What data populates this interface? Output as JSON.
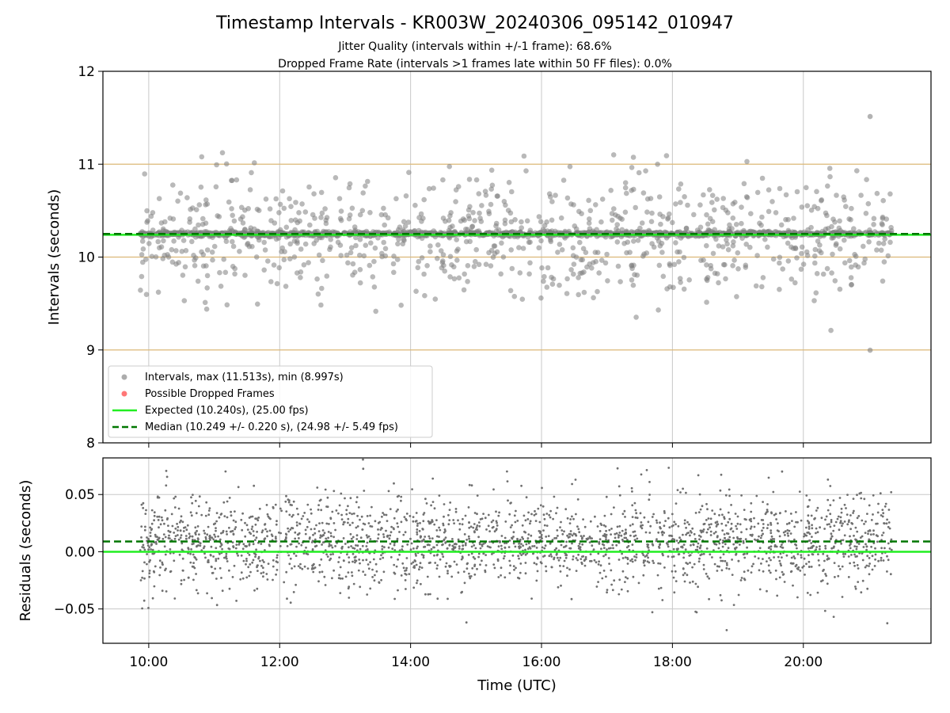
{
  "chart_data": {
    "type": "scatter",
    "title": "Timestamp Intervals - KR003W_20240306_095142_010947",
    "subtitle_lines": [
      "Jitter Quality (intervals within +/-1 frame): 68.6%",
      "Dropped Frame Rate (intervals >1 frames late within 50 FF files): 0.0%"
    ],
    "xlabel": "Time (UTC)",
    "x_ticks": [
      "10:00",
      "12:00",
      "14:00",
      "16:00",
      "18:00",
      "20:00"
    ],
    "x_range_hours": [
      9.3,
      21.95
    ],
    "data_time_range_hours": [
      9.87,
      21.35
    ],
    "grid": true,
    "panels": [
      {
        "name": "intervals",
        "ylabel": "Intervals (seconds)",
        "ylim": [
          8,
          12
        ],
        "y_ticks": [
          "8",
          "9",
          "10",
          "11",
          "12"
        ],
        "reference_lines": [
          9,
          10,
          11
        ],
        "expected": 10.24,
        "median": 10.249,
        "max": 11.513,
        "min": 8.997,
        "legend_position": "lower-left",
        "legend": [
          {
            "label": "Intervals, max (11.513s), min (8.997s)",
            "marker": "circle",
            "color": "#808080"
          },
          {
            "label": "Possible Dropped Frames",
            "marker": "circle",
            "color": "#ff5555"
          },
          {
            "label": "Expected (10.240s), (25.00 fps)",
            "marker": "solid-line",
            "color": "#22ee22"
          },
          {
            "label": "Median (10.249 +/- 0.220 s), (24.98 +/- 5.49 fps)",
            "marker": "dashed-line",
            "color": "#007700"
          }
        ],
        "dropped_frames_count": 0
      },
      {
        "name": "residuals",
        "ylabel": "Residuals (seconds)",
        "ylim": [
          -0.08,
          0.082
        ],
        "y_ticks": [
          "0.05",
          "0.00",
          "−0.05"
        ],
        "y_tick_values": [
          0.05,
          0.0,
          -0.05
        ],
        "expected": 0.0,
        "median": 0.009
      }
    ],
    "colors": {
      "points": "#808080",
      "expected": "#22ee22",
      "median": "#007700",
      "reference": "#dcb877",
      "grid": "#c8c8c8"
    }
  }
}
